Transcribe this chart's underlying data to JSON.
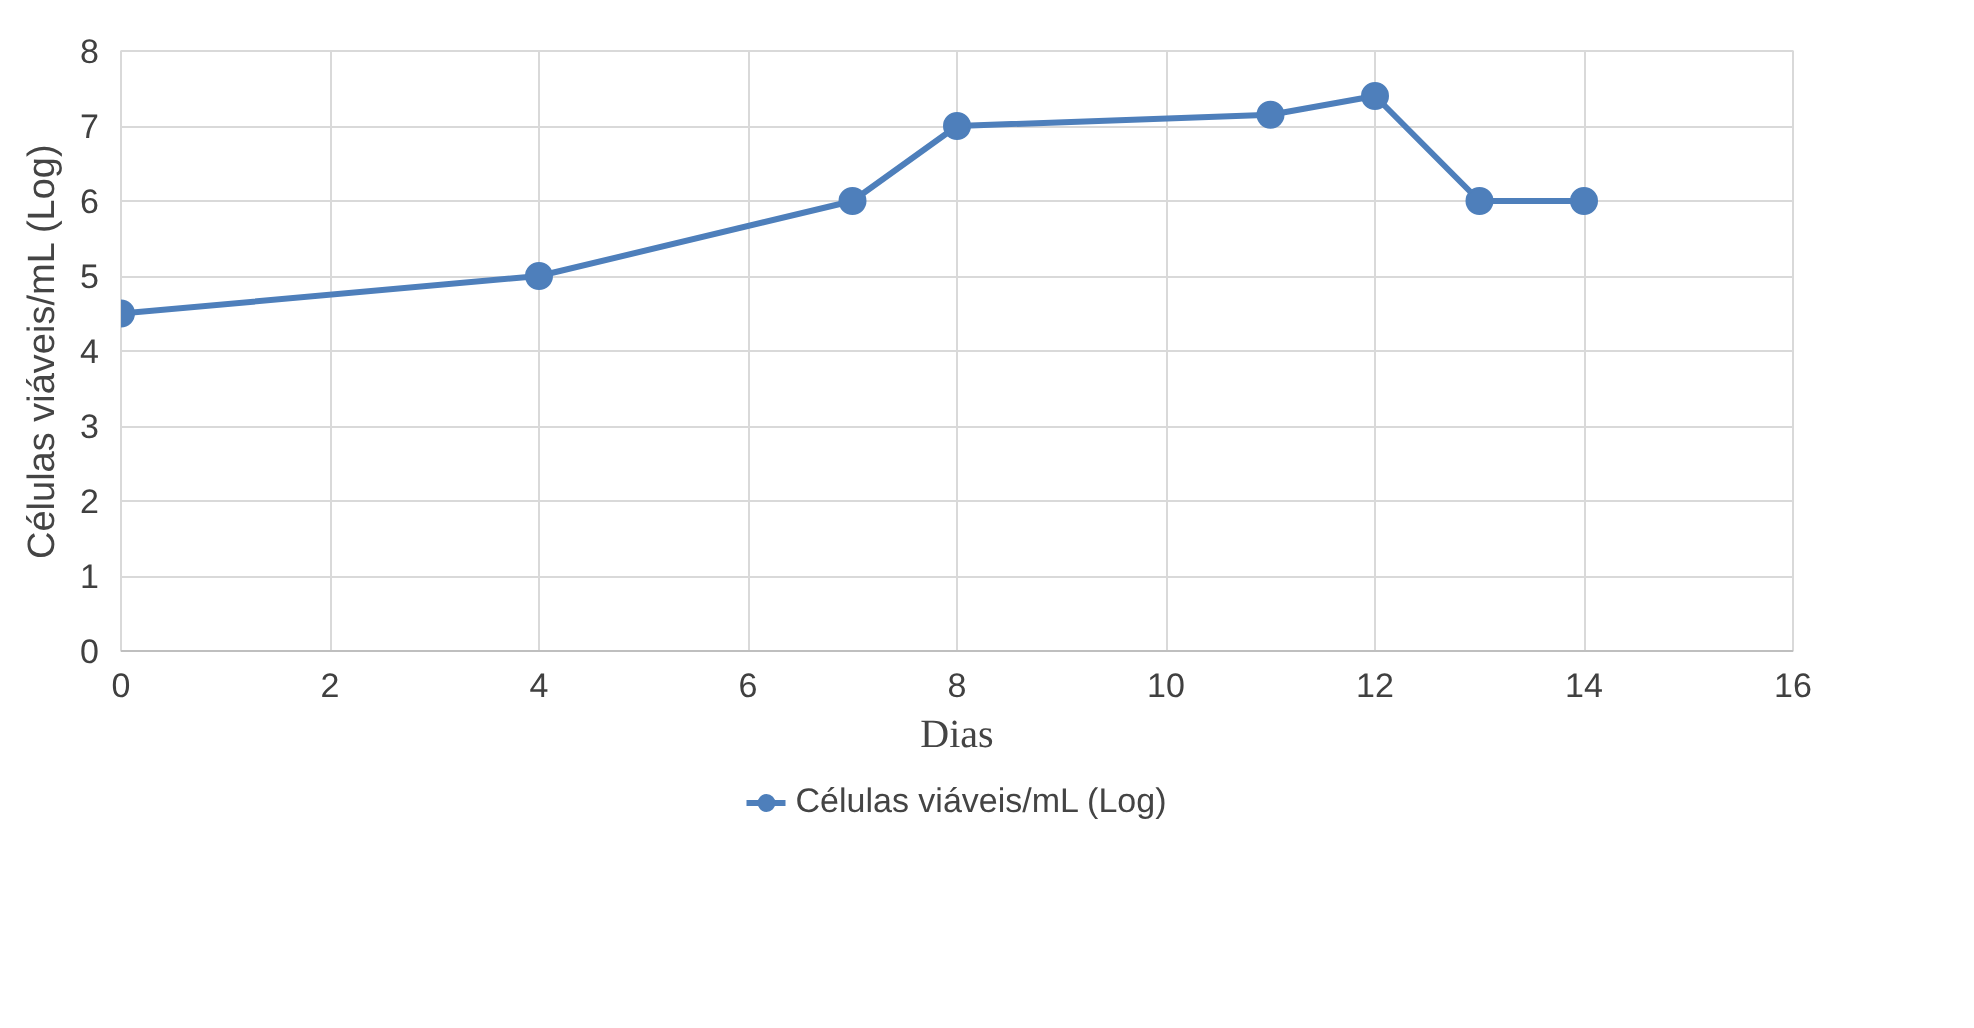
{
  "chart_data": {
    "type": "line",
    "xlabel": "Dias",
    "ylabel": "Células viáveis/mL (Log)",
    "series": [
      {
        "name": "Células viáveis/mL (Log)",
        "color": "#4e7fbb",
        "x": [
          0,
          4,
          7,
          8,
          11,
          12,
          13,
          14
        ],
        "values": [
          4.5,
          5,
          6,
          7,
          7.15,
          7.4,
          6,
          6
        ]
      }
    ],
    "xlim": [
      0,
      16
    ],
    "xticks": [
      0,
      2,
      4,
      6,
      8,
      10,
      12,
      14,
      16
    ],
    "ylim": [
      0,
      8
    ],
    "yticks": [
      0,
      1,
      2,
      3,
      4,
      5,
      6,
      7,
      8
    ],
    "grid": true,
    "legend": "bottom",
    "marker": "circle",
    "line_style": "solid"
  }
}
